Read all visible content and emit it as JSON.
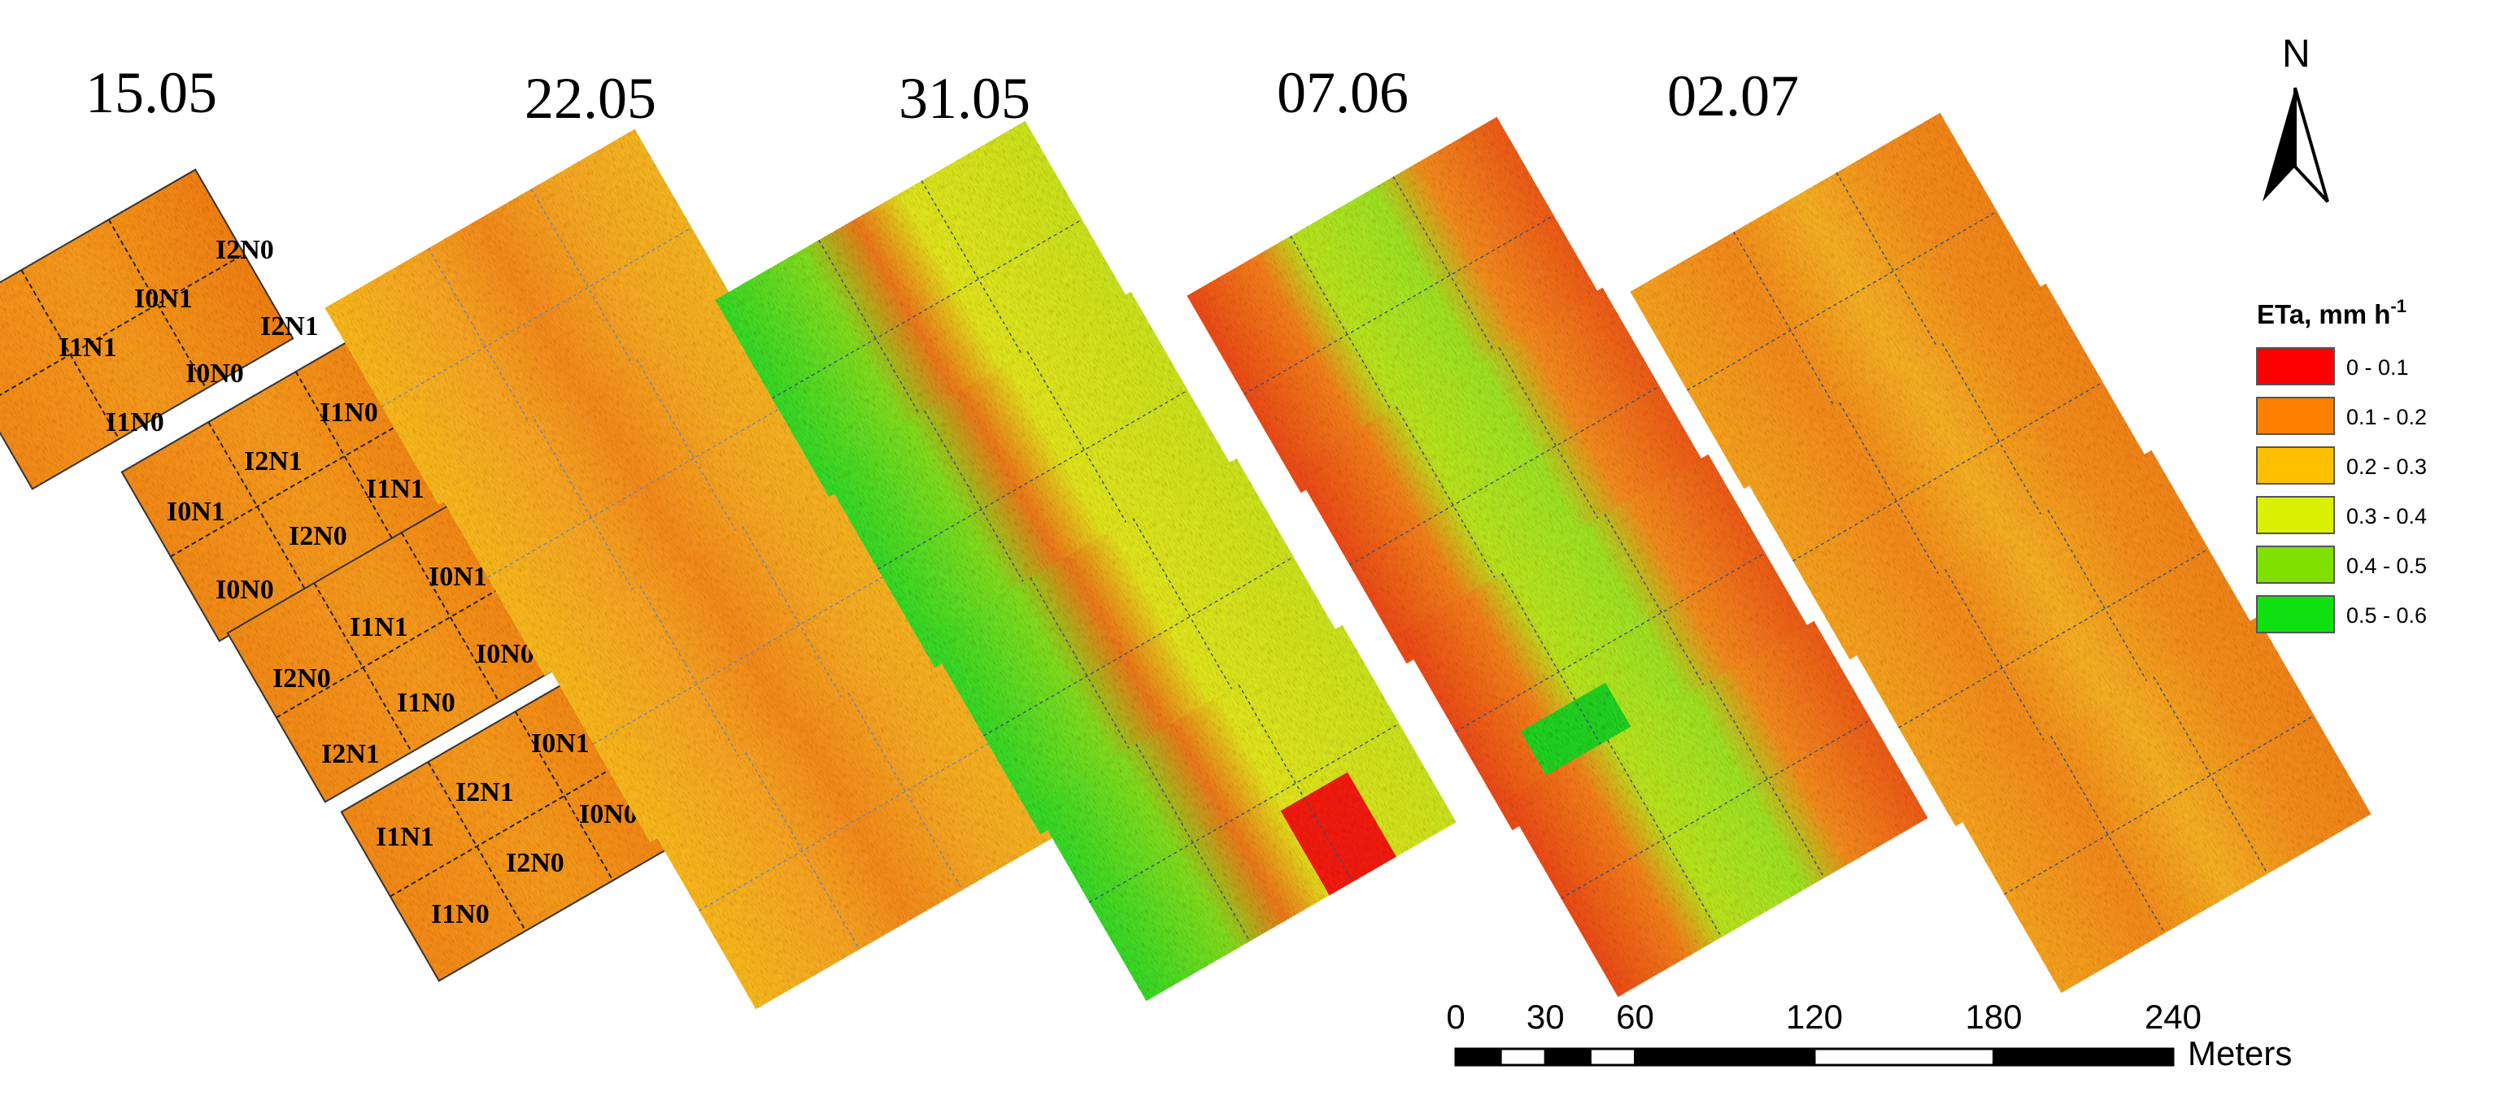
{
  "dates": [
    "15.05",
    "22.05",
    "31.05",
    "07.06",
    "02.07"
  ],
  "north": {
    "label": "N"
  },
  "legend": {
    "title": "ETa, mm h",
    "title_sup": "-1",
    "classes": [
      {
        "label": "0 - 0.1",
        "color": "#ff0000"
      },
      {
        "label": "0.1 - 0.2",
        "color": "#ff8000"
      },
      {
        "label": "0.2 - 0.3",
        "color": "#ffc000"
      },
      {
        "label": "0.3 - 0.4",
        "color": "#d9f000"
      },
      {
        "label": "0.4 - 0.5",
        "color": "#80e000"
      },
      {
        "label": "0.5 - 0.6",
        "color": "#10e010"
      }
    ]
  },
  "scalebar": {
    "ticks": [
      "0",
      "30",
      "60",
      "120",
      "180",
      "240"
    ],
    "tick_values": [
      0,
      30,
      60,
      120,
      180,
      240
    ],
    "unit": "Meters"
  },
  "plots": {
    "block1": [
      "I2N0",
      "I0N1",
      "I1N1",
      "I2N1",
      "I1N0",
      "I0N0"
    ],
    "block2": [
      "I1N0",
      "I2N1",
      "I1N1",
      "I0N1",
      "I0N0",
      "I2N0"
    ],
    "block3": [
      "I0N1",
      "I1N1",
      "I0N0",
      "I2N0",
      "I1N0",
      "I2N1"
    ],
    "block4": [
      "I0N1",
      "I2N1",
      "I0N0",
      "I1N1",
      "I2N0",
      "I1N0"
    ]
  }
}
